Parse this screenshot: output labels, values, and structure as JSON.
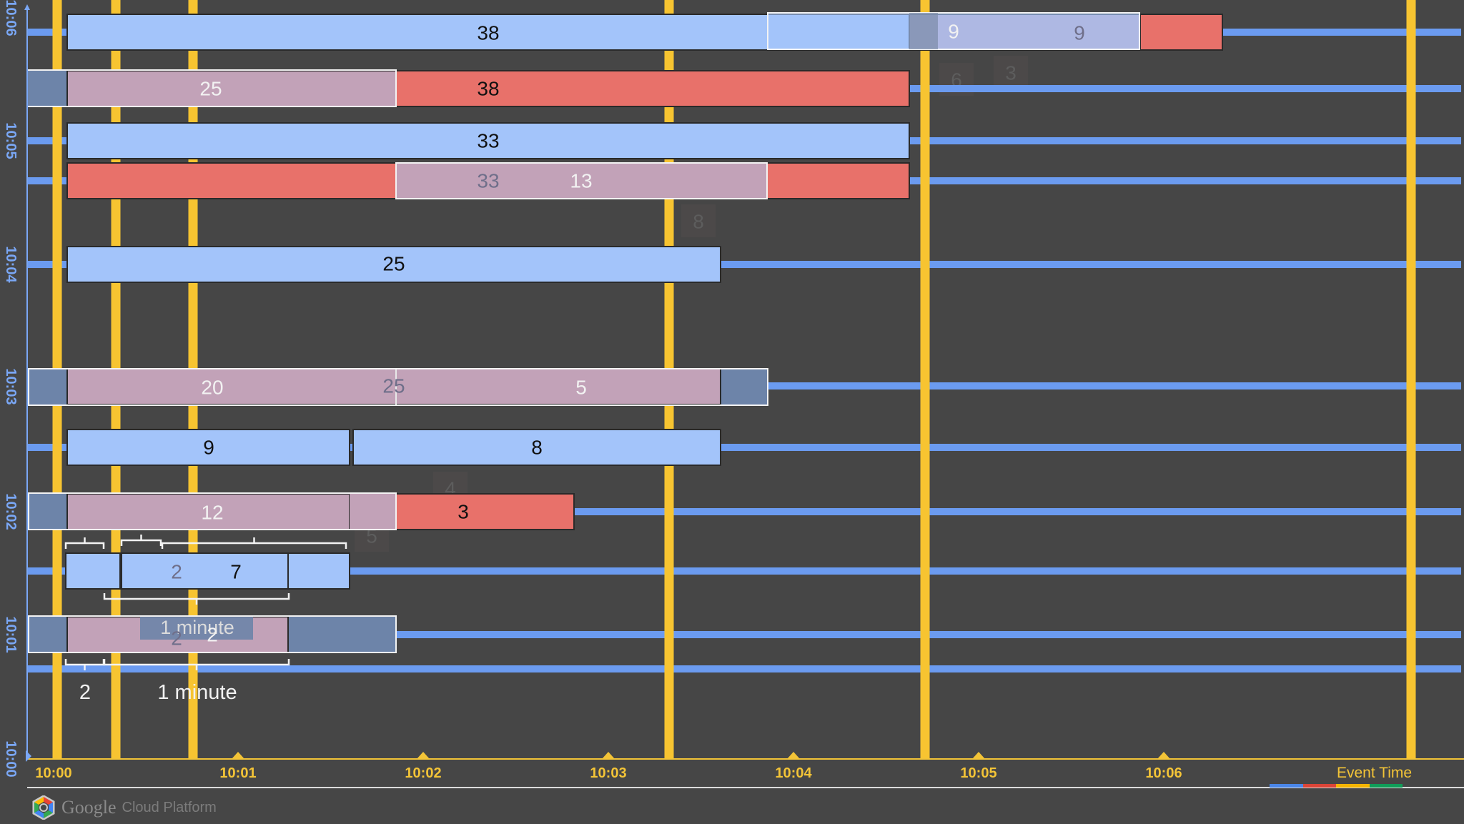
{
  "axis": {
    "x_ticks": [
      "10:00",
      "10:01",
      "10:02",
      "10:03",
      "10:04",
      "10:05",
      "10:06"
    ],
    "x_label": "Event Time",
    "y_ticks": [
      "10:00",
      "10:01",
      "10:02",
      "10:03",
      "10:04",
      "10:05",
      "10:06"
    ]
  },
  "colors": {
    "background": "#464646",
    "data_bar": "#a3c4fa",
    "fired_bar": "#e8716a",
    "window_bar": "#c2a2b8",
    "timeline": "#6b9bf0",
    "watermark": "#f7c431",
    "axis_text": "#f3c437",
    "y_text": "#7aa7f5"
  },
  "bar_labels": {
    "r1": [
      "38",
      "9",
      "9"
    ],
    "r2": [
      "25",
      "38"
    ],
    "r3": [
      "33"
    ],
    "r4": [
      "33",
      "13"
    ],
    "r5": [
      "25"
    ],
    "r6": [
      "20",
      "25",
      "5"
    ],
    "r7": [
      "9",
      "8"
    ],
    "r8": [
      "12",
      "3"
    ],
    "r9": [
      "2",
      "7"
    ],
    "r10": [
      "1 minute",
      "2",
      "2"
    ]
  },
  "annotations": {
    "gap_count": "2",
    "gap_duration": "1 minute"
  },
  "ghost_labels": [
    "6",
    "3",
    "8",
    "4",
    "5"
  ],
  "legend_colors": [
    "#4a86e8",
    "#db4437",
    "#f4b400",
    "#0f9d58"
  ],
  "brand": {
    "google": "Google",
    "cloud": "Cloud Platform",
    "logo_colors": [
      "#ea4335",
      "#fbbc05",
      "#34a853",
      "#4285f4"
    ]
  }
}
